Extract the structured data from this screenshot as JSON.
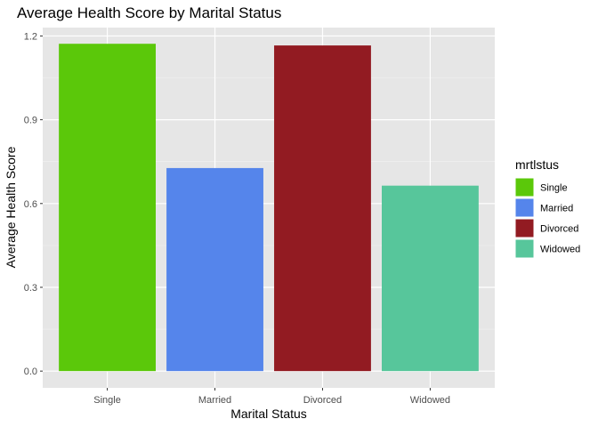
{
  "chart_data": {
    "type": "bar",
    "title": "Average Health Score by Marital Status",
    "xlabel": "Marital Status",
    "ylabel": "Average Health Score",
    "categories": [
      "Single",
      "Married",
      "Divorced",
      "Widowed"
    ],
    "values": [
      1.172,
      0.727,
      1.166,
      0.664
    ],
    "colors": [
      "#5bc80a",
      "#5585eb",
      "#921b22",
      "#57c69b"
    ],
    "ylim": [
      -0.06,
      1.23
    ],
    "yticks": [
      0.0,
      0.3,
      0.6,
      0.9,
      1.2
    ],
    "ytick_labels": [
      "0.0",
      "0.3",
      "0.6",
      "0.9",
      "1.2"
    ],
    "grid": true,
    "panel_background": "#e6e6e6",
    "legend": {
      "title": "mrtlstus",
      "position": "right",
      "entries": [
        "Single",
        "Married",
        "Divorced",
        "Widowed"
      ]
    }
  }
}
